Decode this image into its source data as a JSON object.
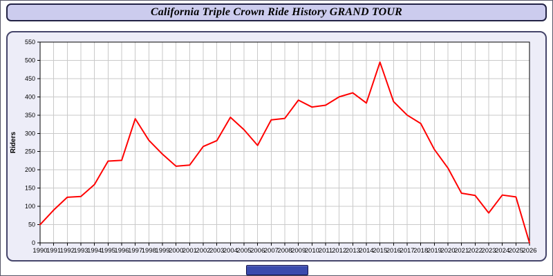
{
  "header": {
    "title": "California Triple Crown Ride History GRAND TOUR"
  },
  "chart_data": {
    "type": "line",
    "title": "California Triple Crown Ride History GRAND TOUR",
    "xlabel": "",
    "ylabel": "Riders",
    "ylim": [
      0,
      550
    ],
    "ytick_step": 50,
    "grid": true,
    "legend": "none",
    "line_color": "#ff0000",
    "grid_color": "#c9c9c9",
    "axis_color": "#000000",
    "plot_bg": "#ffffff",
    "categories": [
      "1990",
      "1991",
      "1992",
      "1993",
      "1994",
      "1995",
      "1996",
      "1997",
      "1998",
      "1999",
      "2000",
      "2001",
      "2002",
      "2003",
      "2004",
      "2005",
      "2006",
      "2007",
      "2008",
      "2009",
      "2010",
      "2011",
      "2012",
      "2013",
      "2014",
      "2015",
      "2016",
      "2017",
      "2018",
      "2019",
      "2020",
      "2021",
      "2022",
      "2023",
      "2024",
      "2025",
      "2026"
    ],
    "values": [
      50,
      90,
      125,
      127,
      160,
      224,
      226,
      340,
      281,
      243,
      210,
      213,
      264,
      280,
      344,
      310,
      267,
      337,
      341,
      391,
      372,
      377,
      400,
      411,
      383,
      495,
      387,
      350,
      327,
      256,
      205,
      136,
      130,
      82,
      131,
      126,
      0
    ]
  }
}
